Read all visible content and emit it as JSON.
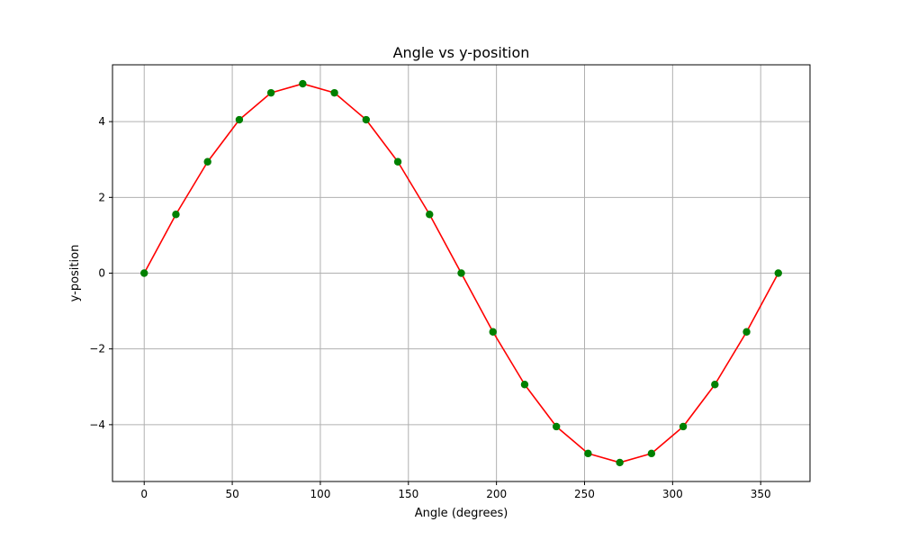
{
  "chart_data": {
    "type": "line",
    "title": "Angle vs y-position",
    "xlabel": "Angle (degrees)",
    "ylabel": "y-position",
    "xlim": [
      -18,
      378
    ],
    "ylim": [
      -5.5,
      5.5
    ],
    "x_ticks": [
      0,
      50,
      100,
      150,
      200,
      250,
      300,
      350
    ],
    "x_tick_labels": [
      "0",
      "50",
      "100",
      "150",
      "200",
      "250",
      "300",
      "350"
    ],
    "y_ticks": [
      -4,
      -2,
      0,
      2,
      4
    ],
    "y_tick_labels": [
      "−4",
      "−2",
      "0",
      "2",
      "4"
    ],
    "grid": true,
    "series": [
      {
        "line_color": "#ff0000",
        "marker_color": "#008000",
        "x": [
          0,
          18,
          36,
          54,
          72,
          90,
          108,
          126,
          144,
          162,
          180,
          198,
          216,
          234,
          252,
          270,
          288,
          306,
          324,
          342,
          360
        ],
        "y": [
          0,
          1.55,
          2.94,
          4.05,
          4.76,
          5.0,
          4.76,
          4.05,
          2.94,
          1.55,
          0,
          -1.55,
          -2.94,
          -4.05,
          -4.76,
          -5.0,
          -4.76,
          -4.05,
          -2.94,
          -1.55,
          0
        ]
      }
    ]
  }
}
